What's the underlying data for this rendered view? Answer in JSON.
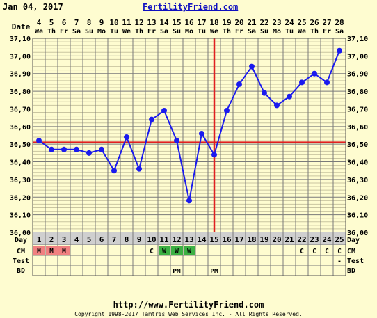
{
  "header": {
    "date": "Jan 04, 2017",
    "brand": "FertilityFriend.com"
  },
  "footer": {
    "url": "http://www.FertilityFriend.com",
    "copyright": "Copyright 1998-2017 Tamtris Web Services Inc. - All Rights Reserved."
  },
  "colors": {
    "background": "#fefcd0",
    "line": "#1a1aee",
    "coverline": "#e02020",
    "menstruation": "#f08080",
    "cm_watery": "#3cb043",
    "cycle_day_row": "#cfcfcf"
  },
  "chart_data": {
    "type": "line",
    "row_labels": {
      "date": "Date",
      "day": "Day",
      "cm": "CM",
      "test": "Test",
      "bd": "BD"
    },
    "dates": [
      "4",
      "5",
      "6",
      "7",
      "8",
      "9",
      "10",
      "11",
      "12",
      "13",
      "14",
      "15",
      "16",
      "17",
      "18",
      "19",
      "20",
      "21",
      "22",
      "23",
      "24",
      "25",
      "26",
      "27",
      "28"
    ],
    "weekdays": [
      "We",
      "Th",
      "Fr",
      "Sa",
      "Su",
      "Mo",
      "Tu",
      "We",
      "Th",
      "Fr",
      "Sa",
      "Su",
      "Mo",
      "Tu",
      "We",
      "Th",
      "Fr",
      "Sa",
      "Su",
      "Mo",
      "Tu",
      "We",
      "Th",
      "Fr",
      "Sa"
    ],
    "cycle_days": [
      "1",
      "2",
      "3",
      "4",
      "5",
      "6",
      "7",
      "8",
      "9",
      "10",
      "11",
      "12",
      "13",
      "14",
      "15",
      "16",
      "17",
      "18",
      "19",
      "20",
      "21",
      "22",
      "23",
      "24",
      "25"
    ],
    "temperatures": [
      36.52,
      36.47,
      36.47,
      36.47,
      36.45,
      36.47,
      36.35,
      36.54,
      36.36,
      36.64,
      36.69,
      36.52,
      36.18,
      36.56,
      36.44,
      36.69,
      36.84,
      36.94,
      36.79,
      36.72,
      36.77,
      36.85,
      36.9,
      36.85,
      37.03
    ],
    "y_ticks": [
      "36,00",
      "36,10",
      "36,20",
      "36,30",
      "36,40",
      "36,50",
      "36,60",
      "36,70",
      "36,80",
      "36,90",
      "37,00",
      "37,10"
    ],
    "ylim": [
      36.0,
      37.1
    ],
    "coverline": 36.51,
    "ovulation_cycle_day": 15,
    "cm": [
      "M",
      "M",
      "M",
      "",
      "",
      "",
      "",
      "",
      "",
      "C",
      "W",
      "W",
      "W",
      "",
      "",
      "",
      "",
      "",
      "",
      "",
      "",
      "C",
      "C",
      "C",
      "C"
    ],
    "test": [
      "",
      "",
      "",
      "",
      "",
      "",
      "",
      "",
      "",
      "",
      "",
      "",
      "",
      "",
      "",
      "",
      "",
      "",
      "",
      "",
      "",
      "",
      "",
      "",
      "-"
    ],
    "bd": [
      "",
      "",
      "",
      "",
      "",
      "",
      "",
      "",
      "",
      "",
      "",
      "PM",
      "",
      "",
      "PM",
      "",
      "",
      "",
      "",
      "",
      "",
      "",
      "",
      "",
      ""
    ]
  }
}
